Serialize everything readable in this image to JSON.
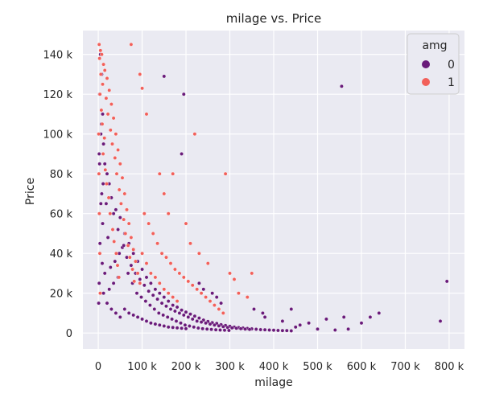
{
  "chart_data": {
    "type": "scatter",
    "title": "milage vs. Price",
    "xlabel": "milage",
    "ylabel": "Price",
    "xlim": [
      -35000,
      835000
    ],
    "ylim": [
      -8000,
      152000
    ],
    "xticks": [
      0,
      100000,
      200000,
      300000,
      400000,
      500000,
      600000,
      700000,
      800000
    ],
    "xtick_labels": [
      "0",
      "100 k",
      "200 k",
      "300 k",
      "400 k",
      "500 k",
      "600 k",
      "700 k",
      "800 k"
    ],
    "yticks": [
      0,
      20000,
      40000,
      60000,
      80000,
      100000,
      120000,
      140000
    ],
    "ytick_labels": [
      "0",
      "20 k",
      "40 k",
      "60 k",
      "80 k",
      "100 k",
      "120 k",
      "140 k"
    ],
    "grid": true,
    "background": "#eaeaf2",
    "legend": {
      "title": "amg",
      "placement": "top-right",
      "entries": [
        {
          "label": "0",
          "color": "#6a1b7a"
        },
        {
          "label": "1",
          "color": "#f2605a"
        }
      ]
    },
    "series": [
      {
        "name": "0",
        "color": "#6a1b7a",
        "points": [
          [
            5000,
            140000
          ],
          [
            8000,
            130000
          ],
          [
            3000,
            120000
          ],
          [
            10000,
            110000
          ],
          [
            6000,
            100000
          ],
          [
            12000,
            95000
          ],
          [
            2000,
            90000
          ],
          [
            15000,
            85000
          ],
          [
            20000,
            80000
          ],
          [
            25000,
            75000
          ],
          [
            8000,
            70000
          ],
          [
            30000,
            68000
          ],
          [
            18000,
            65000
          ],
          [
            40000,
            62000
          ],
          [
            35000,
            60000
          ],
          [
            50000,
            58000
          ],
          [
            10000,
            55000
          ],
          [
            45000,
            52000
          ],
          [
            60000,
            50000
          ],
          [
            22000,
            48000
          ],
          [
            70000,
            45000
          ],
          [
            55000,
            43000
          ],
          [
            80000,
            40000
          ],
          [
            65000,
            38000
          ],
          [
            90000,
            36000
          ],
          [
            75000,
            34000
          ],
          [
            100000,
            32000
          ],
          [
            85000,
            30000
          ],
          [
            110000,
            28000
          ],
          [
            95000,
            27000
          ],
          [
            120000,
            25000
          ],
          [
            105000,
            24000
          ],
          [
            130000,
            22000
          ],
          [
            115000,
            21000
          ],
          [
            140000,
            20000
          ],
          [
            125000,
            19000
          ],
          [
            150000,
            18000
          ],
          [
            135000,
            17000
          ],
          [
            160000,
            16000
          ],
          [
            145000,
            15000
          ],
          [
            170000,
            14000
          ],
          [
            155000,
            13500
          ],
          [
            180000,
            13000
          ],
          [
            165000,
            12000
          ],
          [
            190000,
            11500
          ],
          [
            175000,
            11000
          ],
          [
            200000,
            10500
          ],
          [
            185000,
            10000
          ],
          [
            210000,
            9500
          ],
          [
            195000,
            9000
          ],
          [
            220000,
            8500
          ],
          [
            205000,
            8000
          ],
          [
            230000,
            7500
          ],
          [
            215000,
            7000
          ],
          [
            240000,
            6500
          ],
          [
            225000,
            6000
          ],
          [
            250000,
            5800
          ],
          [
            235000,
            5500
          ],
          [
            260000,
            5200
          ],
          [
            245000,
            5000
          ],
          [
            270000,
            4800
          ],
          [
            255000,
            4500
          ],
          [
            280000,
            4200
          ],
          [
            265000,
            4000
          ],
          [
            290000,
            3800
          ],
          [
            275000,
            3600
          ],
          [
            300000,
            3400
          ],
          [
            285000,
            3200
          ],
          [
            310000,
            3000
          ],
          [
            295000,
            2800
          ],
          [
            320000,
            2700
          ],
          [
            305000,
            2600
          ],
          [
            330000,
            2500
          ],
          [
            315000,
            2400
          ],
          [
            340000,
            2300
          ],
          [
            325000,
            2200
          ],
          [
            350000,
            2100
          ],
          [
            335000,
            2000
          ],
          [
            360000,
            1900
          ],
          [
            345000,
            1800
          ],
          [
            370000,
            1700
          ],
          [
            380000,
            1600
          ],
          [
            390000,
            1500
          ],
          [
            400000,
            1400
          ],
          [
            410000,
            1300
          ],
          [
            420000,
            1200
          ],
          [
            430000,
            1200
          ],
          [
            440000,
            1100
          ],
          [
            60000,
            12000
          ],
          [
            70000,
            10000
          ],
          [
            80000,
            9000
          ],
          [
            90000,
            8000
          ],
          [
            100000,
            7000
          ],
          [
            110000,
            6000
          ],
          [
            120000,
            5000
          ],
          [
            130000,
            4500
          ],
          [
            140000,
            4000
          ],
          [
            150000,
            3500
          ],
          [
            160000,
            3000
          ],
          [
            170000,
            2800
          ],
          [
            180000,
            2600
          ],
          [
            190000,
            2400
          ],
          [
            200000,
            2200
          ],
          [
            20000,
            15000
          ],
          [
            30000,
            12000
          ],
          [
            40000,
            10000
          ],
          [
            50000,
            8000
          ],
          [
            12000,
            20000
          ],
          [
            25000,
            22000
          ],
          [
            35000,
            25000
          ],
          [
            45000,
            28000
          ],
          [
            15000,
            30000
          ],
          [
            28000,
            33000
          ],
          [
            38000,
            36000
          ],
          [
            48000,
            40000
          ],
          [
            58000,
            44000
          ],
          [
            68000,
            30000
          ],
          [
            78000,
            25000
          ],
          [
            88000,
            20000
          ],
          [
            98000,
            18000
          ],
          [
            108000,
            16000
          ],
          [
            118000,
            14000
          ],
          [
            128000,
            12000
          ],
          [
            138000,
            10000
          ],
          [
            148000,
            9000
          ],
          [
            158000,
            8000
          ],
          [
            168000,
            7000
          ],
          [
            178000,
            6000
          ],
          [
            188000,
            5000
          ],
          [
            198000,
            4000
          ],
          [
            208000,
            3500
          ],
          [
            218000,
            3000
          ],
          [
            228000,
            2500
          ],
          [
            238000,
            2200
          ],
          [
            248000,
            2000
          ],
          [
            258000,
            1800
          ],
          [
            268000,
            1600
          ],
          [
            278000,
            1500
          ],
          [
            288000,
            1400
          ],
          [
            298000,
            1300
          ],
          [
            190000,
            90000
          ],
          [
            150000,
            129000
          ],
          [
            195000,
            120000
          ],
          [
            220000,
            100000
          ],
          [
            555000,
            124000
          ],
          [
            795000,
            26000
          ],
          [
            780000,
            6000
          ],
          [
            640000,
            10000
          ],
          [
            560000,
            8000
          ],
          [
            520000,
            7000
          ],
          [
            480000,
            5000
          ],
          [
            460000,
            4000
          ],
          [
            450000,
            3000
          ],
          [
            500000,
            2000
          ],
          [
            540000,
            1500
          ],
          [
            600000,
            5000
          ],
          [
            570000,
            2000
          ],
          [
            620000,
            8000
          ],
          [
            375000,
            10000
          ],
          [
            355000,
            12000
          ],
          [
            380000,
            8000
          ],
          [
            420000,
            6000
          ],
          [
            440000,
            12000
          ],
          [
            260000,
            20000
          ],
          [
            270000,
            18000
          ],
          [
            280000,
            15000
          ],
          [
            230000,
            25000
          ],
          [
            240000,
            22000
          ],
          [
            2000,
            25000
          ],
          [
            4000,
            45000
          ],
          [
            6000,
            65000
          ],
          [
            3000,
            85000
          ],
          [
            7000,
            105000
          ],
          [
            1000,
            15000
          ],
          [
            9000,
            35000
          ],
          [
            11000,
            75000
          ]
        ]
      },
      {
        "name": "1",
        "color": "#f2605a",
        "points": [
          [
            2000,
            145000
          ],
          [
            5000,
            142000
          ],
          [
            8000,
            140000
          ],
          [
            3000,
            138000
          ],
          [
            12000,
            135000
          ],
          [
            15000,
            132000
          ],
          [
            6000,
            130000
          ],
          [
            20000,
            128000
          ],
          [
            10000,
            125000
          ],
          [
            25000,
            122000
          ],
          [
            4000,
            120000
          ],
          [
            18000,
            118000
          ],
          [
            30000,
            115000
          ],
          [
            7000,
            112000
          ],
          [
            22000,
            110000
          ],
          [
            35000,
            108000
          ],
          [
            9000,
            105000
          ],
          [
            28000,
            102000
          ],
          [
            40000,
            100000
          ],
          [
            14000,
            98000
          ],
          [
            32000,
            95000
          ],
          [
            45000,
            92000
          ],
          [
            11000,
            90000
          ],
          [
            38000,
            88000
          ],
          [
            50000,
            85000
          ],
          [
            16000,
            82000
          ],
          [
            42000,
            80000
          ],
          [
            55000,
            78000
          ],
          [
            19000,
            75000
          ],
          [
            48000,
            72000
          ],
          [
            60000,
            70000
          ],
          [
            24000,
            68000
          ],
          [
            52000,
            65000
          ],
          [
            65000,
            62000
          ],
          [
            27000,
            60000
          ],
          [
            58000,
            57000
          ],
          [
            70000,
            55000
          ],
          [
            33000,
            52000
          ],
          [
            62000,
            50000
          ],
          [
            75000,
            48000
          ],
          [
            36000,
            46000
          ],
          [
            68000,
            44000
          ],
          [
            80000,
            42000
          ],
          [
            41000,
            40000
          ],
          [
            72000,
            38000
          ],
          [
            85000,
            36000
          ],
          [
            44000,
            34000
          ],
          [
            78000,
            32000
          ],
          [
            90000,
            30000
          ],
          [
            47000,
            28000
          ],
          [
            82000,
            26000
          ],
          [
            95000,
            25000
          ],
          [
            100000,
            40000
          ],
          [
            110000,
            35000
          ],
          [
            120000,
            30000
          ],
          [
            130000,
            28000
          ],
          [
            140000,
            25000
          ],
          [
            150000,
            22000
          ],
          [
            160000,
            20000
          ],
          [
            170000,
            18000
          ],
          [
            180000,
            16000
          ],
          [
            105000,
            60000
          ],
          [
            115000,
            55000
          ],
          [
            125000,
            50000
          ],
          [
            135000,
            45000
          ],
          [
            145000,
            40000
          ],
          [
            155000,
            38000
          ],
          [
            165000,
            35000
          ],
          [
            175000,
            32000
          ],
          [
            185000,
            30000
          ],
          [
            195000,
            28000
          ],
          [
            205000,
            26000
          ],
          [
            215000,
            24000
          ],
          [
            225000,
            22000
          ],
          [
            235000,
            20000
          ],
          [
            245000,
            18000
          ],
          [
            255000,
            16000
          ],
          [
            265000,
            14000
          ],
          [
            275000,
            12000
          ],
          [
            285000,
            10000
          ],
          [
            75000,
            145000
          ],
          [
            95000,
            130000
          ],
          [
            100000,
            123000
          ],
          [
            110000,
            110000
          ],
          [
            220000,
            100000
          ],
          [
            290000,
            80000
          ],
          [
            170000,
            80000
          ],
          [
            140000,
            80000
          ],
          [
            150000,
            70000
          ],
          [
            160000,
            60000
          ],
          [
            200000,
            55000
          ],
          [
            210000,
            45000
          ],
          [
            230000,
            40000
          ],
          [
            250000,
            35000
          ],
          [
            300000,
            30000
          ],
          [
            310000,
            27000
          ],
          [
            350000,
            30000
          ],
          [
            320000,
            20000
          ],
          [
            340000,
            18000
          ],
          [
            1000,
            100000
          ],
          [
            1500,
            80000
          ],
          [
            2500,
            60000
          ],
          [
            3500,
            40000
          ],
          [
            4500,
            20000
          ]
        ]
      }
    ]
  }
}
